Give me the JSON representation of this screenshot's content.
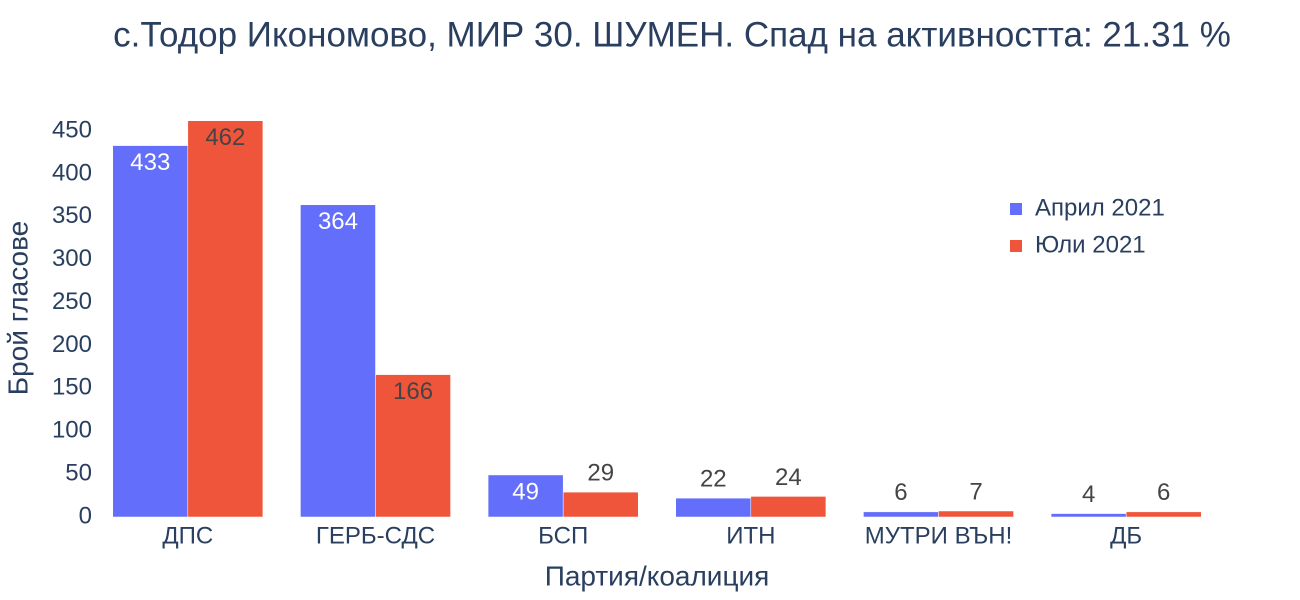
{
  "chart_data": {
    "type": "bar",
    "title": "с.Тодор Икономово, МИР 30. ШУМЕН. Спад на активността: 21.31 %",
    "x_label": "Партия/коалиция",
    "y_label": "Брой гласове",
    "categories": [
      "ДПС",
      "ГЕРБ-СДС",
      "БСП",
      "ИТН",
      "МУТРИ ВЪН!",
      "ДБ"
    ],
    "series": [
      {
        "name": "Април 2021",
        "color": "#636efa",
        "values": [
          433,
          364,
          49,
          22,
          6,
          4
        ]
      },
      {
        "name": "Юли 2021",
        "color": "#ef553b",
        "values": [
          462,
          166,
          29,
          24,
          7,
          6
        ]
      }
    ],
    "ylim": [
      0,
      485
    ],
    "yticks": [
      0,
      50,
      100,
      150,
      200,
      250,
      300,
      350,
      400,
      450
    ],
    "grid": false,
    "legend": "top-right"
  }
}
